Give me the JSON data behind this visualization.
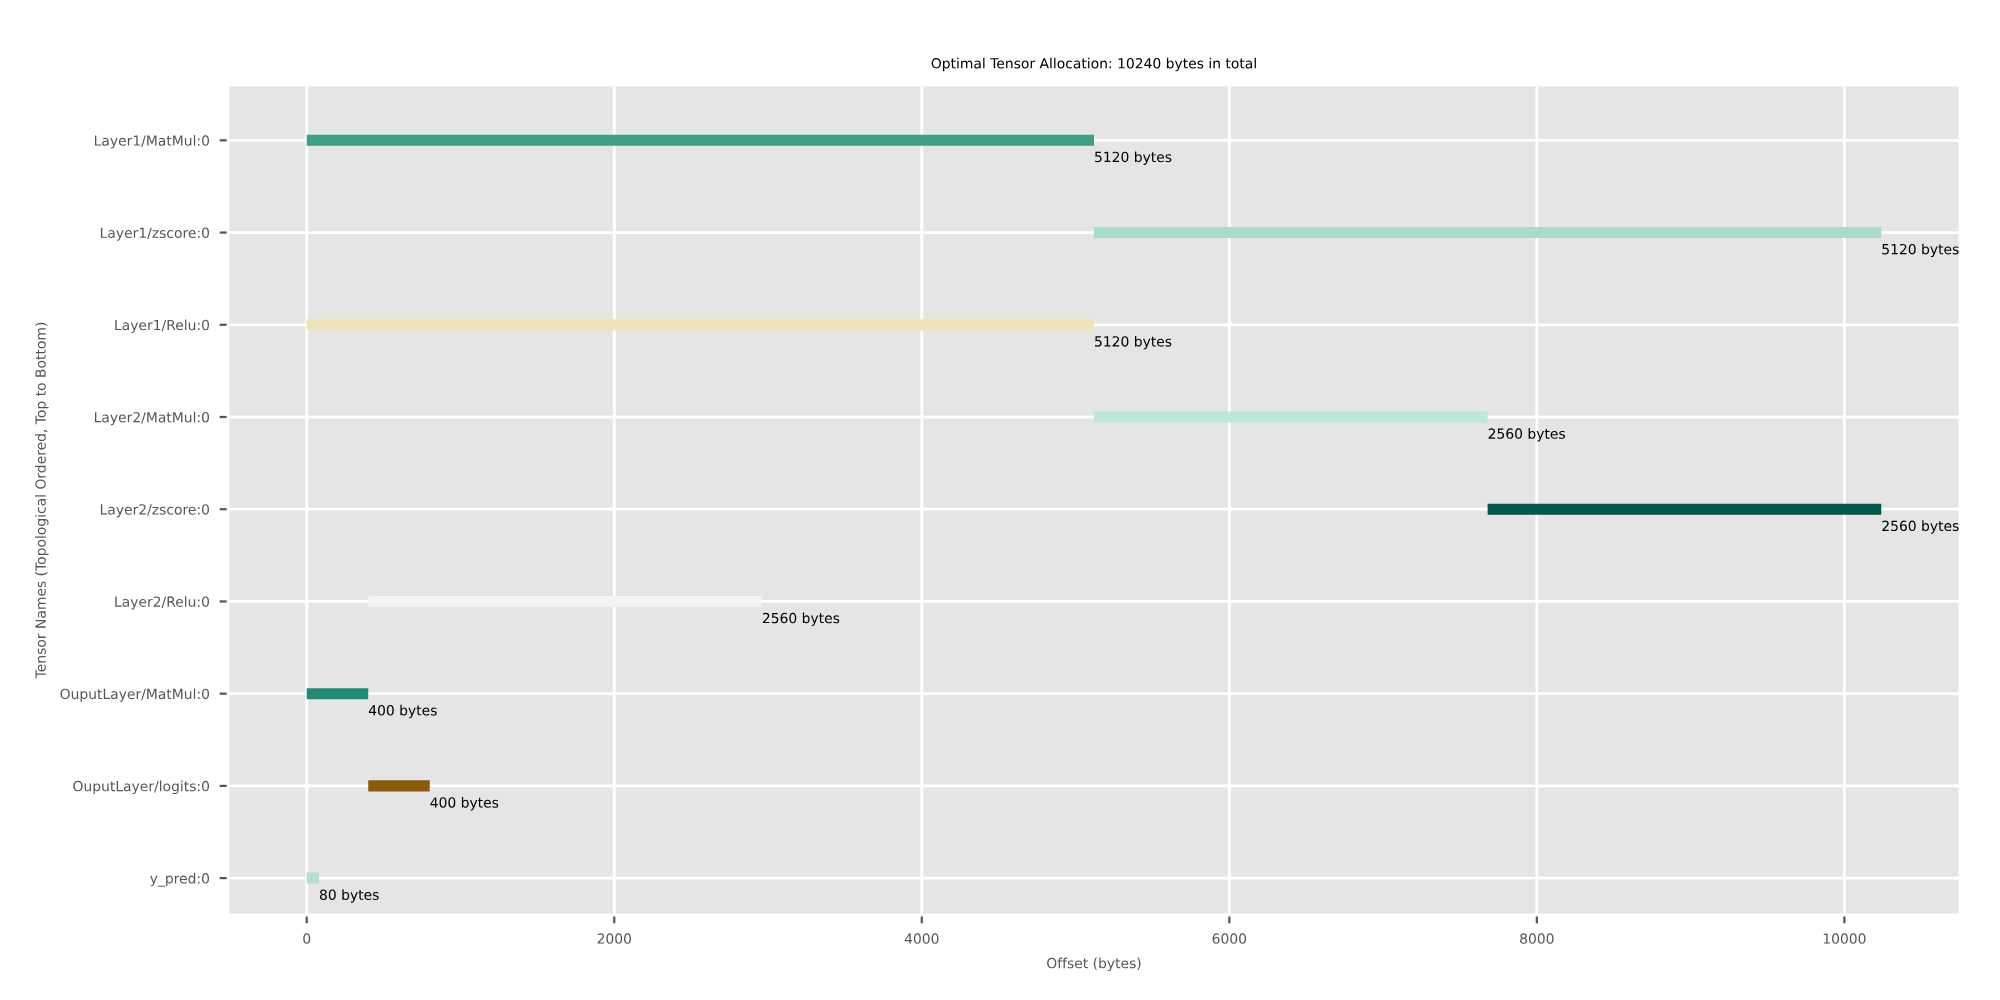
{
  "chart_data": {
    "type": "bar",
    "orientation": "horizontal",
    "title": "Optimal Tensor Allocation: 10240 bytes in total",
    "xlabel": "Offset (bytes)",
    "ylabel": "Tensor Names (Topological Ordered, Top to Bottom)",
    "categories": [
      "Layer1/MatMul:0",
      "Layer1/zscore:0",
      "Layer1/Relu:0",
      "Layer2/MatMul:0",
      "Layer2/zscore:0",
      "Layer2/Relu:0",
      "OuputLayer/MatMul:0",
      "OuputLayer/logits:0",
      "y_pred:0"
    ],
    "values": [
      5120,
      5120,
      5120,
      2560,
      2560,
      2560,
      400,
      400,
      80
    ],
    "base": [
      0,
      5120,
      0,
      5120,
      7680,
      400,
      0,
      400,
      0
    ],
    "colors": [
      "#3e9f86",
      "#a8dcc8",
      "#efe3b8",
      "#bde8d9",
      "#01594c",
      "#f4f4f4",
      "#218c76",
      "#8c5a0c",
      "#b6ddd3"
    ],
    "value_labels": [
      "5120 bytes",
      "5120 bytes",
      "5120 bytes",
      "2560 bytes",
      "2560 bytes",
      "2560 bytes",
      "400 bytes",
      "400 bytes",
      "80 bytes"
    ],
    "xlim": [
      -512,
      10752
    ],
    "xticks": [
      0,
      2000,
      4000,
      6000,
      8000,
      10000
    ],
    "grid": true
  }
}
